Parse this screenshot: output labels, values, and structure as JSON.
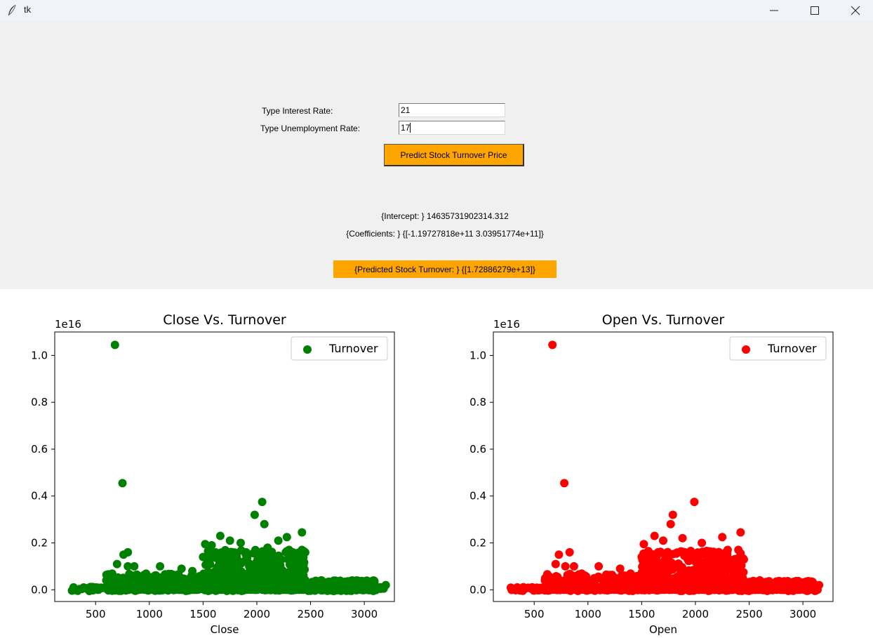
{
  "window": {
    "title": "tk"
  },
  "form": {
    "interest_label": "Type Interest Rate:",
    "interest_value": "21",
    "unemployment_label": "Type Unemployment Rate:",
    "unemployment_value": "17",
    "predict_button": "Predict Stock Turnover Price"
  },
  "results": {
    "intercept": "{Intercept: } 14635731902314.312",
    "coefficients": "{Coefficients: } {[-1.19727818e+11  3.03951774e+11]}",
    "prediction": "{Predicted Stock Turnover: } {[1.72886279e+13]}"
  },
  "chart_data": [
    {
      "type": "scatter",
      "title": "Close Vs. Turnover",
      "xlabel": "Close",
      "ylabel": "",
      "y_scale_label": "1e16",
      "color": "#008000",
      "legend": "Turnover",
      "legend_position": "top-right",
      "grid": false,
      "xlim": [
        120,
        3280
      ],
      "ylim": [
        -0.05,
        1.1
      ],
      "xticks": [
        "500",
        "1000",
        "1500",
        "2000",
        "2500",
        "3000"
      ],
      "yticks": [
        "0.0",
        "0.2",
        "0.4",
        "0.6",
        "0.8",
        "1.0"
      ],
      "points": [
        [
          680,
          1.045
        ],
        [
          750,
          0.455
        ],
        [
          2050,
          0.375
        ],
        [
          1980,
          0.32
        ],
        [
          2070,
          0.28
        ],
        [
          2420,
          0.245
        ],
        [
          1660,
          0.23
        ],
        [
          1520,
          0.195
        ],
        [
          1580,
          0.19
        ],
        [
          1750,
          0.21
        ],
        [
          1850,
          0.2
        ],
        [
          2200,
          0.21
        ],
        [
          2280,
          0.225
        ],
        [
          2100,
          0.18
        ],
        [
          2420,
          0.17
        ],
        [
          800,
          0.16
        ],
        [
          760,
          0.15
        ],
        [
          700,
          0.11
        ],
        [
          800,
          0.1
        ],
        [
          860,
          0.1
        ],
        [
          1100,
          0.1
        ],
        [
          1300,
          0.09
        ],
        [
          1400,
          0.08
        ],
        [
          1500,
          0.14
        ],
        [
          1650,
          0.15
        ],
        [
          1900,
          0.16
        ],
        [
          2300,
          0.17
        ],
        [
          2400,
          0.15
        ],
        [
          2000,
          0.12
        ],
        [
          1700,
          0.1
        ],
        [
          1200,
          0.06
        ],
        [
          900,
          0.05
        ],
        [
          600,
          0.04
        ],
        [
          2600,
          0.04
        ],
        [
          2800,
          0.03
        ],
        [
          3000,
          0.03
        ],
        [
          3100,
          0.02
        ],
        [
          3200,
          0.02
        ]
      ],
      "bands": [
        {
          "x_from": 280,
          "x_to": 3200,
          "y_from": -0.005,
          "y_to": 0.012
        },
        {
          "x_from": 600,
          "x_to": 1500,
          "y_from": 0.0,
          "y_to": 0.07
        },
        {
          "x_from": 1500,
          "x_to": 2450,
          "y_from": 0.0,
          "y_to": 0.17
        },
        {
          "x_from": 2450,
          "x_to": 3100,
          "y_from": 0.0,
          "y_to": 0.04
        }
      ]
    },
    {
      "type": "scatter",
      "title": "Open Vs. Turnover",
      "xlabel": "Open",
      "ylabel": "",
      "y_scale_label": "1e16",
      "color": "#ff0000",
      "legend": "Turnover",
      "legend_position": "top-right",
      "grid": false,
      "xlim": [
        120,
        3280
      ],
      "ylim": [
        -0.05,
        1.1
      ],
      "xticks": [
        "500",
        "1000",
        "1500",
        "2000",
        "2500",
        "3000"
      ],
      "yticks": [
        "0.0",
        "0.2",
        "0.4",
        "0.6",
        "0.8",
        "1.0"
      ],
      "points": [
        [
          670,
          1.045
        ],
        [
          780,
          0.455
        ],
        [
          1990,
          0.375
        ],
        [
          1790,
          0.32
        ],
        [
          1770,
          0.28
        ],
        [
          2420,
          0.245
        ],
        [
          1620,
          0.23
        ],
        [
          1520,
          0.195
        ],
        [
          1700,
          0.21
        ],
        [
          1880,
          0.22
        ],
        [
          2250,
          0.225
        ],
        [
          2060,
          0.2
        ],
        [
          2400,
          0.17
        ],
        [
          830,
          0.16
        ],
        [
          730,
          0.15
        ],
        [
          700,
          0.11
        ],
        [
          790,
          0.1
        ],
        [
          870,
          0.1
        ],
        [
          1100,
          0.1
        ],
        [
          1300,
          0.09
        ],
        [
          1500,
          0.14
        ],
        [
          1650,
          0.15
        ],
        [
          1900,
          0.16
        ],
        [
          2300,
          0.17
        ],
        [
          2000,
          0.12
        ],
        [
          1200,
          0.06
        ],
        [
          900,
          0.05
        ],
        [
          600,
          0.04
        ],
        [
          2600,
          0.04
        ],
        [
          2800,
          0.03
        ],
        [
          3000,
          0.03
        ],
        [
          3100,
          0.02
        ],
        [
          3150,
          0.02
        ]
      ],
      "bands": [
        {
          "x_from": 280,
          "x_to": 3150,
          "y_from": -0.005,
          "y_to": 0.012
        },
        {
          "x_from": 600,
          "x_to": 1500,
          "y_from": 0.0,
          "y_to": 0.07
        },
        {
          "x_from": 1500,
          "x_to": 2450,
          "y_from": 0.0,
          "y_to": 0.17
        },
        {
          "x_from": 2450,
          "x_to": 3100,
          "y_from": 0.0,
          "y_to": 0.04
        }
      ]
    }
  ]
}
